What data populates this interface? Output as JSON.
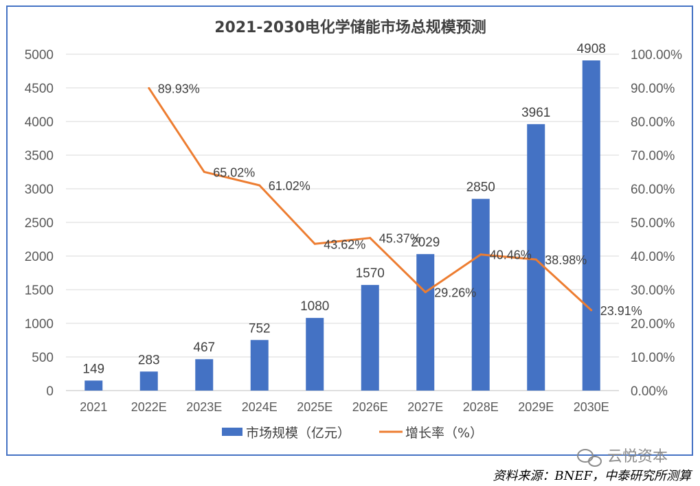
{
  "colors": {
    "bar": "#4472C4",
    "line": "#ED7D31",
    "grid": "#D9D9D9",
    "frame": "#4472C4"
  },
  "chart_data": {
    "type": "bar",
    "title": "2021-2030电化学储能市场总规模预测",
    "categories": [
      "2021",
      "2022E",
      "2023E",
      "2024E",
      "2025E",
      "2026E",
      "2027E",
      "2028E",
      "2029E",
      "2030E"
    ],
    "series": [
      {
        "name": "市场规模（亿元）",
        "type": "bar",
        "axis": "left",
        "values": [
          149,
          283,
          467,
          752,
          1080,
          1570,
          2029,
          2850,
          3961,
          4908
        ],
        "labels": [
          "149",
          "283",
          "467",
          "752",
          "1080",
          "1570",
          "2029",
          "2850",
          "3961",
          "4908"
        ]
      },
      {
        "name": "增长率（%）",
        "type": "line",
        "axis": "right",
        "values": [
          null,
          89.93,
          65.02,
          61.02,
          43.62,
          45.37,
          29.26,
          40.46,
          38.98,
          23.91
        ],
        "labels": [
          "",
          "89.93%",
          "65.02%",
          "61.02%",
          "43.62%",
          "45.37%",
          "29.26%",
          "40.46%",
          "38.98%",
          "23.91%"
        ]
      }
    ],
    "y_left": {
      "lim": [
        0,
        5000
      ],
      "ticks": [
        "0",
        "500",
        "1000",
        "1500",
        "2000",
        "2500",
        "3000",
        "3500",
        "4000",
        "4500",
        "5000"
      ]
    },
    "y_right": {
      "lim": [
        0,
        100
      ],
      "ticks": [
        "0.00%",
        "10.00%",
        "20.00%",
        "30.00%",
        "40.00%",
        "50.00%",
        "60.00%",
        "70.00%",
        "80.00%",
        "90.00%",
        "100.00%"
      ]
    },
    "grid": true,
    "legend": "bottom"
  },
  "watermark": "云悦资本",
  "source": "资料来源：BNEF，中泰研究所测算"
}
